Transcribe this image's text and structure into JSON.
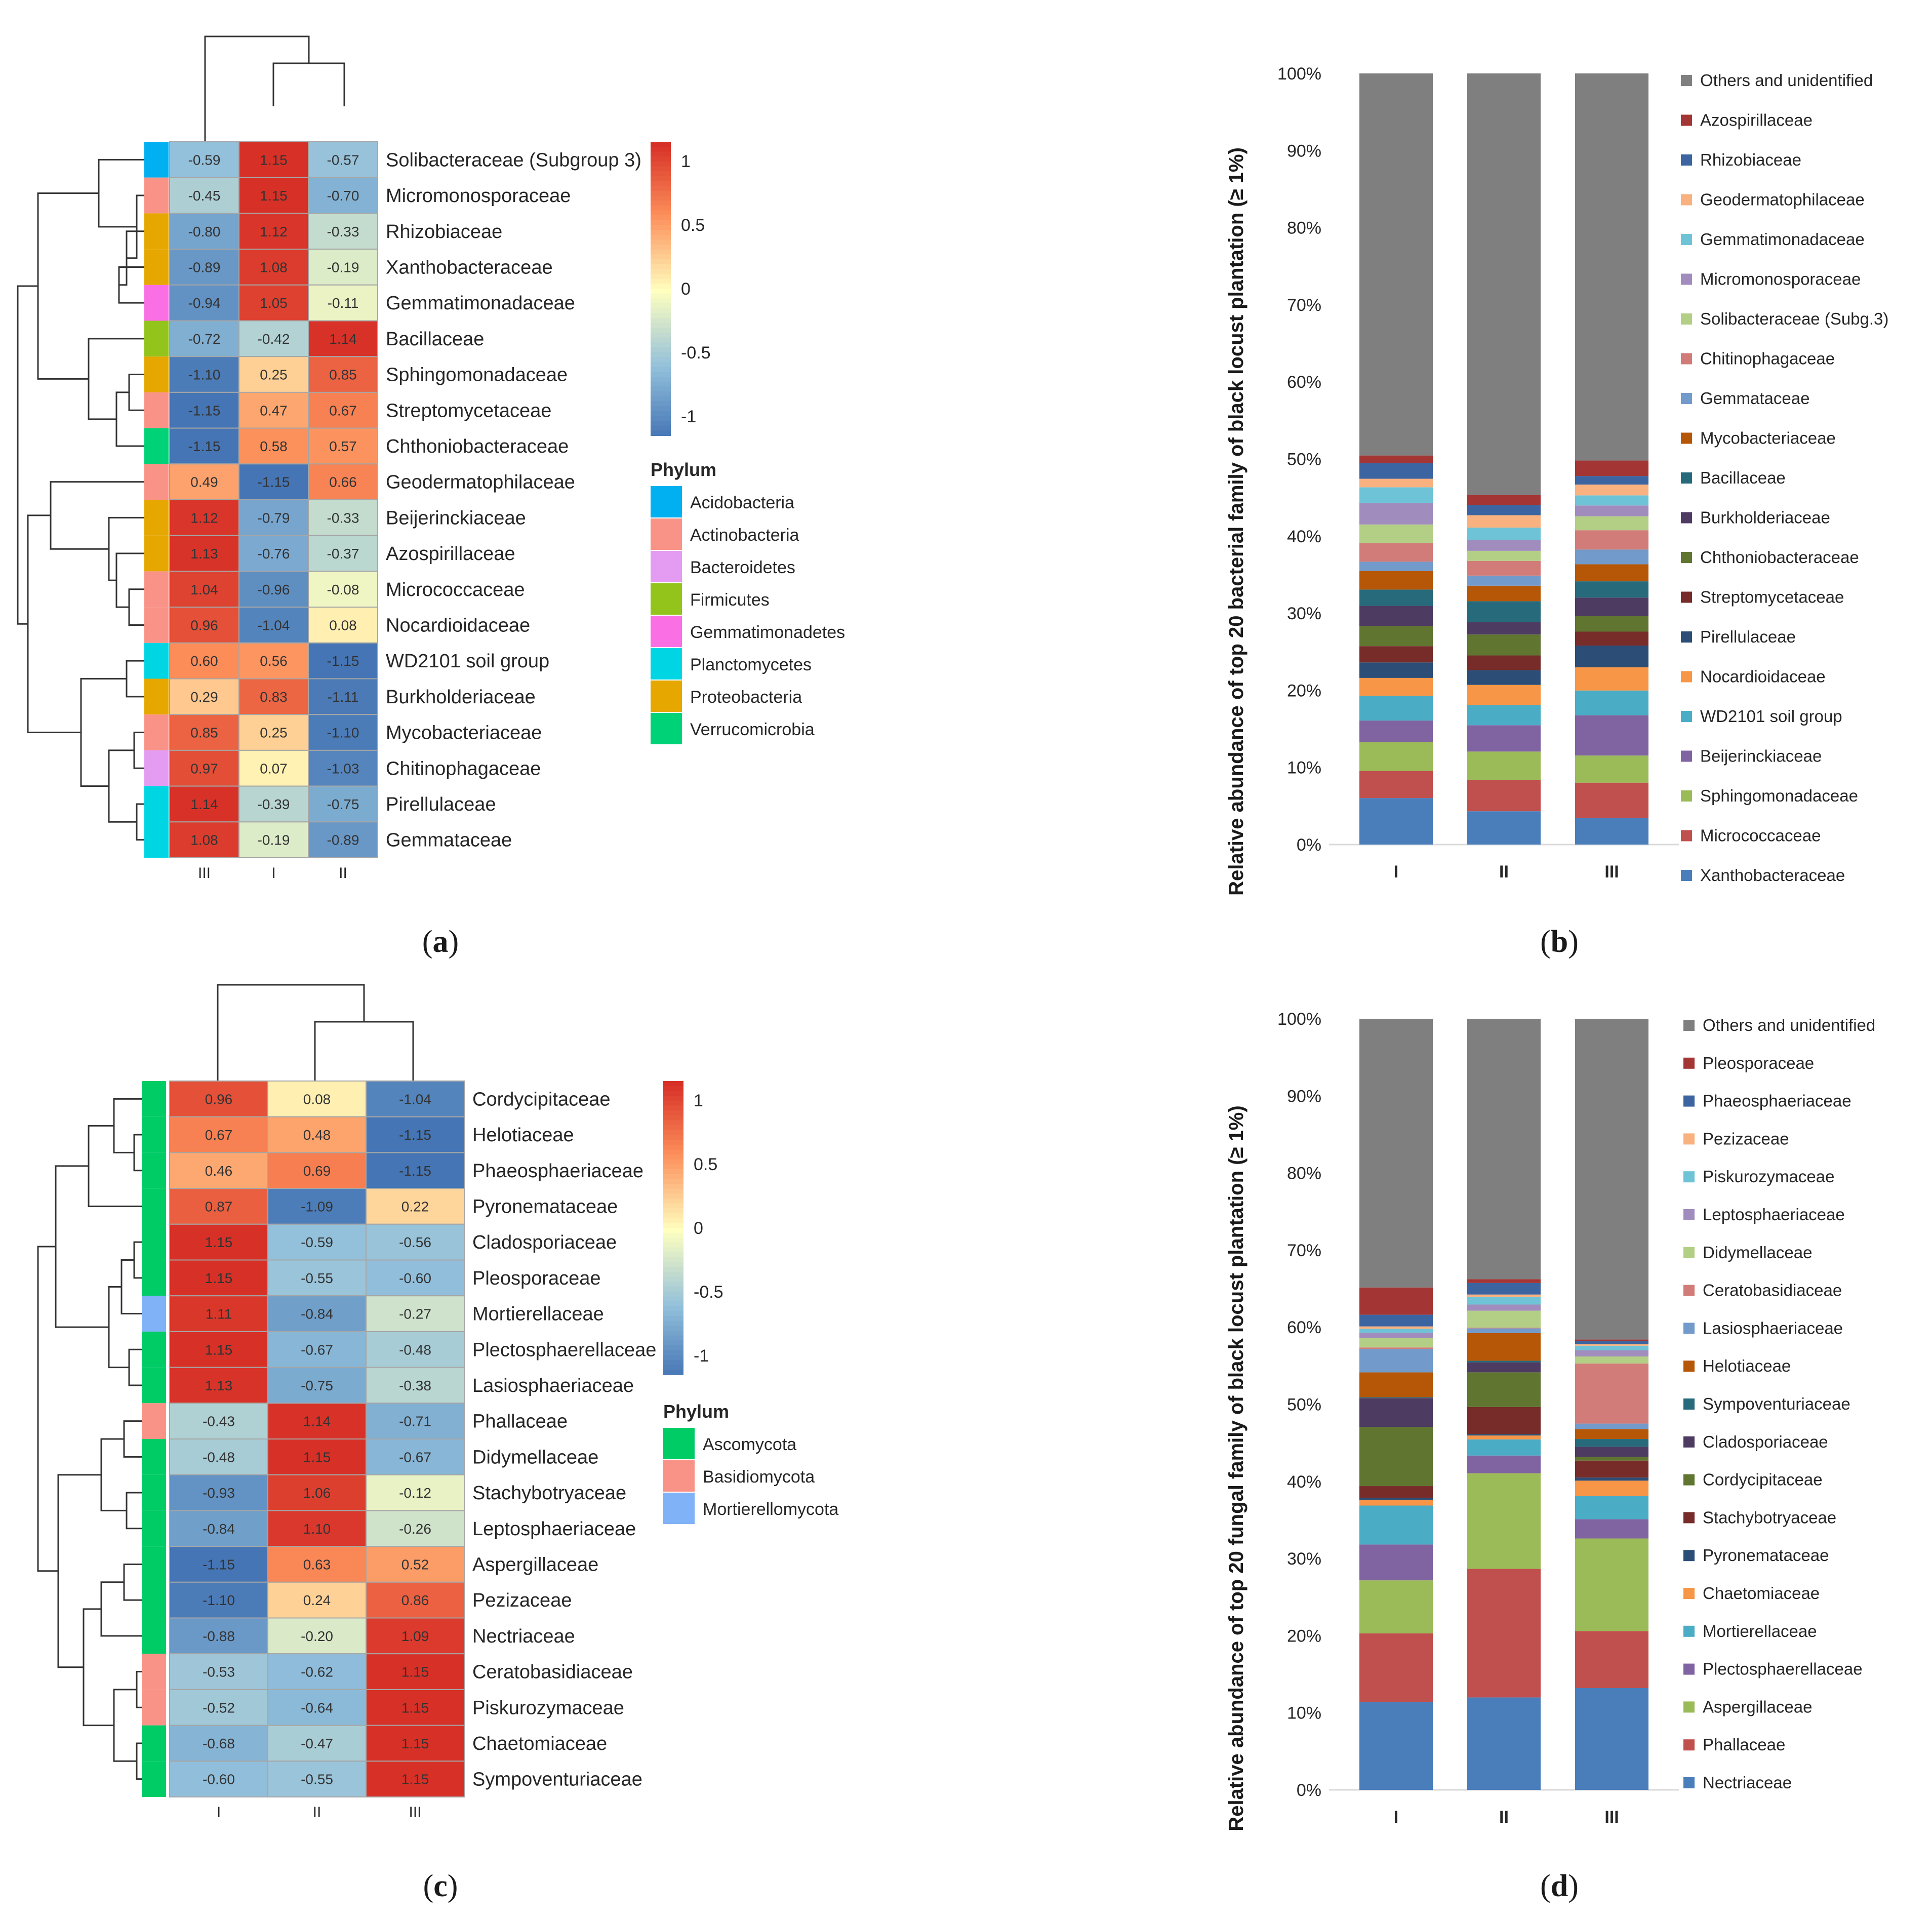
{
  "chart_data": [
    {
      "panel": "a",
      "type": "heatmap",
      "columns": [
        "III",
        "I",
        "II"
      ],
      "rows": [
        "Solibacteraceae (Subgroup 3)",
        "Micromonosporaceae",
        "Rhizobiaceae",
        "Xanthobacteraceae",
        "Gemmatimonadaceae",
        "Bacillaceae",
        "Sphingomonadaceae",
        "Streptomycetaceae",
        "Chthoniobacteraceae",
        "Geodermatophilaceae",
        "Beijerinckiaceae",
        "Azospirillaceae",
        "Micrococcaceae",
        "Nocardioidaceae",
        "WD2101 soil group",
        "Burkholderiaceae",
        "Mycobacteriaceae",
        "Chitinophagaceae",
        "Pirellulaceae",
        "Gemmataceae"
      ],
      "values": [
        [
          -0.59,
          1.15,
          -0.57
        ],
        [
          -0.45,
          1.15,
          -0.7
        ],
        [
          -0.8,
          1.12,
          -0.33
        ],
        [
          -0.89,
          1.08,
          -0.19
        ],
        [
          -0.94,
          1.05,
          -0.11
        ],
        [
          -0.72,
          -0.42,
          1.14
        ],
        [
          -1.1,
          0.25,
          0.85
        ],
        [
          -1.15,
          0.47,
          0.67
        ],
        [
          -1.15,
          0.58,
          0.57
        ],
        [
          0.49,
          -1.15,
          0.66
        ],
        [
          1.12,
          -0.79,
          -0.33
        ],
        [
          1.13,
          -0.76,
          -0.37
        ],
        [
          1.04,
          -0.96,
          -0.08
        ],
        [
          0.96,
          -1.04,
          0.08
        ],
        [
          0.6,
          0.56,
          -1.15
        ],
        [
          0.29,
          0.83,
          -1.11
        ],
        [
          0.85,
          0.25,
          -1.1
        ],
        [
          0.97,
          0.07,
          -1.03
        ],
        [
          1.14,
          -0.39,
          -0.75
        ],
        [
          1.08,
          -0.19,
          -0.89
        ]
      ],
      "labels": [
        [
          "-0.59",
          "1.15",
          "-0.57"
        ],
        [
          "-0.45",
          "1.15",
          "-0.70"
        ],
        [
          "-0.80",
          "1.12",
          "-0.33"
        ],
        [
          "-0.89",
          "1.08",
          "-0.19"
        ],
        [
          "-0.94",
          "1.05",
          "-0.11"
        ],
        [
          "-0.72",
          "-0.42",
          "1.14"
        ],
        [
          "-1.10",
          "0.25",
          "0.85"
        ],
        [
          "-1.15",
          "0.47",
          "0.67"
        ],
        [
          "-1.15",
          "0.58",
          "0.57"
        ],
        [
          "0.49",
          "-1.15",
          "0.66"
        ],
        [
          "1.12",
          "-0.79",
          "-0.33"
        ],
        [
          "1.13",
          "-0.76",
          "-0.37"
        ],
        [
          "1.04",
          "-0.96",
          "-0.08"
        ],
        [
          "0.96",
          "-1.04",
          "0.08"
        ],
        [
          "0.60",
          "0.56",
          "-1.15"
        ],
        [
          "0.29",
          "0.83",
          "-1.11"
        ],
        [
          "0.85",
          "0.25",
          "-1.10"
        ],
        [
          "0.97",
          "0.07",
          "-1.03"
        ],
        [
          "1.14",
          "-0.39",
          "-0.75"
        ],
        [
          "1.08",
          "-0.19",
          "-0.89"
        ]
      ],
      "row_phylum": [
        "Acidobacteria",
        "Actinobacteria",
        "Proteobacteria",
        "Proteobacteria",
        "Gemmatimonadetes",
        "Firmicutes",
        "Proteobacteria",
        "Actinobacteria",
        "Verrucomicrobia",
        "Actinobacteria",
        "Proteobacteria",
        "Proteobacteria",
        "Actinobacteria",
        "Actinobacteria",
        "Planctomycetes",
        "Proteobacteria",
        "Actinobacteria",
        "Bacteroidetes",
        "Planctomycetes",
        "Planctomycetes"
      ],
      "color_scale_ticks": [
        "1",
        "0.5",
        "0",
        "-0.5",
        "-1"
      ],
      "legend_title": "Phylum",
      "phyla": [
        {
          "name": "Acidobacteria",
          "color": "#00b0f0"
        },
        {
          "name": "Actinobacteria",
          "color": "#fa9387"
        },
        {
          "name": "Bacteroidetes",
          "color": "#e39cf2"
        },
        {
          "name": "Firmicutes",
          "color": "#92c41c"
        },
        {
          "name": "Gemmatimonadetes",
          "color": "#fb6fe4"
        },
        {
          "name": "Planctomycetes",
          "color": "#00d6e3"
        },
        {
          "name": "Proteobacteria",
          "color": "#e6a700"
        },
        {
          "name": "Verrucomicrobia",
          "color": "#00d278"
        }
      ],
      "caption": "a"
    },
    {
      "panel": "b",
      "type": "bar",
      "stacked": true,
      "categories": [
        "I",
        "II",
        "III"
      ],
      "ylabel": "Relative abundance of top 20 bacterial family of black locust plantation (≥ 1%)",
      "yticks": [
        "0%",
        "10%",
        "20%",
        "30%",
        "40%",
        "50%",
        "60%",
        "70%",
        "80%",
        "90%",
        "100%"
      ],
      "ylim": [
        0,
        100
      ],
      "series": [
        {
          "name": "Xanthobacteraceae",
          "color": "#4a7ebb",
          "values": [
            6.0,
            4.3,
            3.4
          ]
        },
        {
          "name": "Micrococcaceae",
          "color": "#c0504d",
          "values": [
            3.5,
            4.0,
            4.6
          ]
        },
        {
          "name": "Sphingomonadaceae",
          "color": "#9bbb59",
          "values": [
            3.7,
            3.7,
            3.5
          ]
        },
        {
          "name": "Beijerinckiaceae",
          "color": "#8064a2",
          "values": [
            2.8,
            3.4,
            5.2
          ]
        },
        {
          "name": "WD2101 soil group",
          "color": "#4bacc6",
          "values": [
            3.2,
            2.6,
            3.2
          ]
        },
        {
          "name": "Nocardioidaceae",
          "color": "#f79646",
          "values": [
            2.3,
            2.6,
            3.0
          ]
        },
        {
          "name": "Pirellulaceae",
          "color": "#2c4d75",
          "values": [
            2.0,
            1.9,
            2.8
          ]
        },
        {
          "name": "Streptomycetaceae",
          "color": "#772c2a",
          "values": [
            2.1,
            1.9,
            1.8
          ]
        },
        {
          "name": "Chthoniobacteraceae",
          "color": "#5f7530",
          "values": [
            2.6,
            2.7,
            2.0
          ]
        },
        {
          "name": "Burkholderiaceae",
          "color": "#4d3b62",
          "values": [
            2.6,
            1.6,
            2.4
          ]
        },
        {
          "name": "Bacillaceae",
          "color": "#276a7c",
          "values": [
            2.1,
            2.7,
            2.1
          ]
        },
        {
          "name": "Mycobacteriaceae",
          "color": "#b65708",
          "values": [
            2.4,
            2.0,
            2.2
          ]
        },
        {
          "name": "Gemmataceae",
          "color": "#729aca",
          "values": [
            1.2,
            1.3,
            1.9
          ]
        },
        {
          "name": "Chitinophagaceae",
          "color": "#d27c79",
          "values": [
            2.4,
            1.9,
            2.5
          ]
        },
        {
          "name": "Solibacteraceae (Subg.3)",
          "color": "#b3cf85",
          "values": [
            2.4,
            1.3,
            1.8
          ]
        },
        {
          "name": "Micromonosporaceae",
          "color": "#a08dbd",
          "values": [
            2.8,
            1.4,
            1.4
          ]
        },
        {
          "name": "Gemmatimonadaceae",
          "color": "#6ec4d6",
          "values": [
            2.0,
            1.6,
            1.3
          ]
        },
        {
          "name": "Geodermatophilaceae",
          "color": "#f9b17f",
          "values": [
            1.1,
            1.6,
            1.4
          ]
        },
        {
          "name": "Rhizobiaceae",
          "color": "#3b64a0",
          "values": [
            2.0,
            1.3,
            1.1
          ]
        },
        {
          "name": "Azospirillaceae",
          "color": "#a33634",
          "values": [
            1.0,
            1.3,
            2.0
          ]
        },
        {
          "name": "Others and unidentified",
          "color": "#7f7f7f",
          "values": [
            49.3,
            54.4,
            50.0
          ]
        }
      ],
      "caption": "b"
    },
    {
      "panel": "c",
      "type": "heatmap",
      "columns": [
        "I",
        "II",
        "III"
      ],
      "rows": [
        "Cordycipitaceae",
        "Helotiaceae",
        "Phaeosphaeriaceae",
        "Pyronemataceae",
        "Cladosporiaceae",
        "Pleosporaceae",
        "Mortierellaceae",
        "Plectosphaerellaceae",
        "Lasiosphaeriaceae",
        "Phallaceae",
        "Didymellaceae",
        "Stachybotryaceae",
        "Leptosphaeriaceae",
        "Aspergillaceae",
        "Pezizaceae",
        "Nectriaceae",
        "Ceratobasidiaceae",
        "Piskurozymaceae",
        "Chaetomiaceae",
        "Sympoventuriaceae"
      ],
      "values": [
        [
          0.96,
          0.08,
          -1.04
        ],
        [
          0.67,
          0.48,
          -1.15
        ],
        [
          0.46,
          0.69,
          -1.15
        ],
        [
          0.87,
          -1.09,
          0.22
        ],
        [
          1.15,
          -0.59,
          -0.56
        ],
        [
          1.15,
          -0.55,
          -0.6
        ],
        [
          1.11,
          -0.84,
          -0.27
        ],
        [
          1.15,
          -0.67,
          -0.48
        ],
        [
          1.13,
          -0.75,
          -0.38
        ],
        [
          -0.43,
          1.14,
          -0.71
        ],
        [
          -0.48,
          1.15,
          -0.67
        ],
        [
          -0.93,
          1.06,
          -0.12
        ],
        [
          -0.84,
          1.1,
          -0.26
        ],
        [
          -1.15,
          0.63,
          0.52
        ],
        [
          -1.1,
          0.24,
          0.86
        ],
        [
          -0.88,
          -0.2,
          1.09
        ],
        [
          -0.53,
          -0.62,
          1.15
        ],
        [
          -0.52,
          -0.64,
          1.15
        ],
        [
          -0.68,
          -0.47,
          1.15
        ],
        [
          -0.6,
          -0.55,
          1.15
        ]
      ],
      "labels": [
        [
          "0.96",
          "0.08",
          "-1.04"
        ],
        [
          "0.67",
          "0.48",
          "-1.15"
        ],
        [
          "0.46",
          "0.69",
          "-1.15"
        ],
        [
          "0.87",
          "-1.09",
          "0.22"
        ],
        [
          "1.15",
          "-0.59",
          "-0.56"
        ],
        [
          "1.15",
          "-0.55",
          "-0.60"
        ],
        [
          "1.11",
          "-0.84",
          "-0.27"
        ],
        [
          "1.15",
          "-0.67",
          "-0.48"
        ],
        [
          "1.13",
          "-0.75",
          "-0.38"
        ],
        [
          "-0.43",
          "1.14",
          "-0.71"
        ],
        [
          "-0.48",
          "1.15",
          "-0.67"
        ],
        [
          "-0.93",
          "1.06",
          "-0.12"
        ],
        [
          "-0.84",
          "1.10",
          "-0.26"
        ],
        [
          "-1.15",
          "0.63",
          "0.52"
        ],
        [
          "-1.10",
          "0.24",
          "0.86"
        ],
        [
          "-0.88",
          "-0.20",
          "1.09"
        ],
        [
          "-0.53",
          "-0.62",
          "1.15"
        ],
        [
          "-0.52",
          "-0.64",
          "1.15"
        ],
        [
          "-0.68",
          "-0.47",
          "1.15"
        ],
        [
          "-0.60",
          "-0.55",
          "1.15"
        ]
      ],
      "row_phylum": [
        "Ascomycota",
        "Ascomycota",
        "Ascomycota",
        "Ascomycota",
        "Ascomycota",
        "Ascomycota",
        "Mortierellomycota",
        "Ascomycota",
        "Ascomycota",
        "Basidiomycota",
        "Ascomycota",
        "Ascomycota",
        "Ascomycota",
        "Ascomycota",
        "Ascomycota",
        "Ascomycota",
        "Basidiomycota",
        "Basidiomycota",
        "Ascomycota",
        "Ascomycota"
      ],
      "color_scale_ticks": [
        "1",
        "0.5",
        "0",
        "-0.5",
        "-1"
      ],
      "legend_title": "Phylum",
      "phyla": [
        {
          "name": "Ascomycota",
          "color": "#00cc66"
        },
        {
          "name": "Basidiomycota",
          "color": "#fa9387"
        },
        {
          "name": "Mortierellomycota",
          "color": "#7fb2f7"
        }
      ],
      "caption": "c"
    },
    {
      "panel": "d",
      "type": "bar",
      "stacked": true,
      "categories": [
        "I",
        "II",
        "III"
      ],
      "ylabel": "Relative abundance of top 20 fungal family of black locust plantation (≥ 1%)",
      "yticks": [
        "0%",
        "10%",
        "20%",
        "30%",
        "40%",
        "50%",
        "60%",
        "70%",
        "80%",
        "90%",
        "100%"
      ],
      "ylim": [
        0,
        100
      ],
      "series": [
        {
          "name": "Nectriaceae",
          "color": "#4a7ebb",
          "values": [
            11.3,
            12.0,
            13.2
          ]
        },
        {
          "name": "Phallaceae",
          "color": "#c0504d",
          "values": [
            8.8,
            16.7,
            7.4
          ]
        },
        {
          "name": "Aspergillaceae",
          "color": "#9bbb59",
          "values": [
            6.8,
            12.4,
            12.0
          ]
        },
        {
          "name": "Plectosphaerellaceae",
          "color": "#8064a2",
          "values": [
            4.6,
            2.3,
            2.5
          ]
        },
        {
          "name": "Mortierellaceae",
          "color": "#4bacc6",
          "values": [
            5.0,
            2.1,
            3.0
          ]
        },
        {
          "name": "Chaetomiaceae",
          "color": "#f79646",
          "values": [
            0.7,
            0.5,
            2.0
          ]
        },
        {
          "name": "Pyronemataceae",
          "color": "#2c4d75",
          "values": [
            0.3,
            0.2,
            0.4
          ]
        },
        {
          "name": "Stachybotryaceae",
          "color": "#772c2a",
          "values": [
            1.5,
            3.5,
            2.2
          ]
        },
        {
          "name": "Cordycipitaceae",
          "color": "#5f7530",
          "values": [
            7.6,
            4.5,
            0.5
          ]
        },
        {
          "name": "Cladosporiaceae",
          "color": "#4d3b62",
          "values": [
            3.7,
            1.3,
            1.3
          ]
        },
        {
          "name": "Sympoventuriaceae",
          "color": "#276a7c",
          "values": [
            0.1,
            0.2,
            1.0
          ]
        },
        {
          "name": "Helotiaceae",
          "color": "#b65708",
          "values": [
            3.2,
            3.6,
            1.3
          ]
        },
        {
          "name": "Lasiosphaeriaceae",
          "color": "#729aca",
          "values": [
            3.0,
            0.6,
            0.7
          ]
        },
        {
          "name": "Ceratobasidiaceae",
          "color": "#d27c79",
          "values": [
            0.2,
            0.1,
            7.8
          ]
        },
        {
          "name": "Didymellaceae",
          "color": "#b3cf85",
          "values": [
            1.2,
            2.2,
            0.9
          ]
        },
        {
          "name": "Leptosphaeriaceae",
          "color": "#a08dbd",
          "values": [
            0.7,
            0.8,
            0.8
          ]
        },
        {
          "name": "Piskurozymaceae",
          "color": "#6ec4d6",
          "values": [
            0.5,
            1.0,
            0.6
          ]
        },
        {
          "name": "Pezizaceae",
          "color": "#f9b17f",
          "values": [
            0.3,
            0.3,
            0.2
          ]
        },
        {
          "name": "Phaeosphaeriaceae",
          "color": "#3b64a0",
          "values": [
            1.5,
            1.5,
            0.4
          ]
        },
        {
          "name": "Pleosporaceae",
          "color": "#a33634",
          "values": [
            3.5,
            0.5,
            0.2
          ]
        },
        {
          "name": "Others and unidentified",
          "color": "#7f7f7f",
          "values": [
            34.5,
            33.8,
            41.6
          ]
        }
      ],
      "caption": "d"
    }
  ]
}
